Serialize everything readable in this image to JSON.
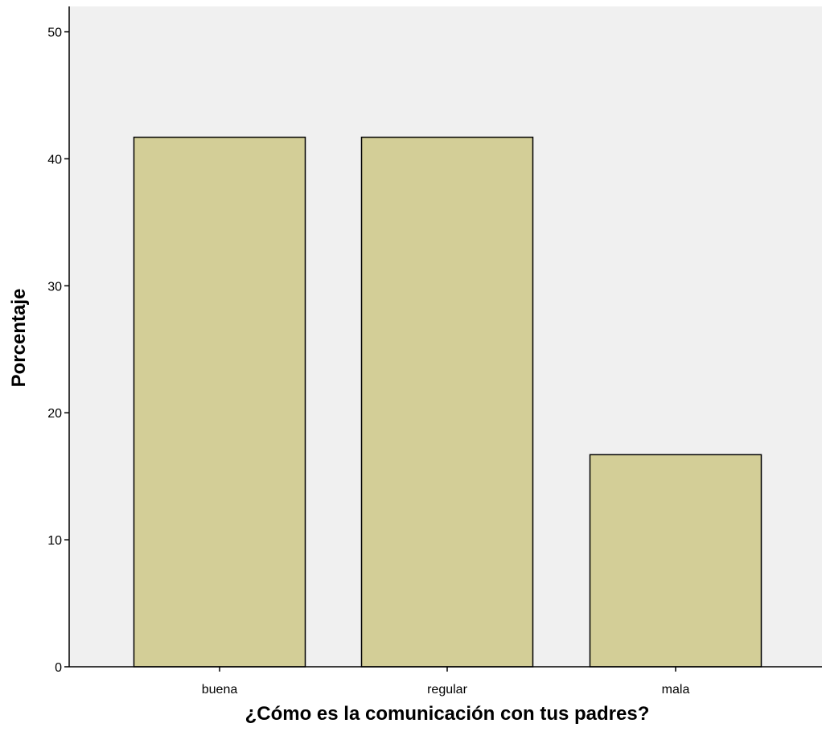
{
  "chart_data": {
    "type": "bar",
    "categories": [
      "buena",
      "regular",
      "mala"
    ],
    "values": [
      41.7,
      41.7,
      16.7
    ],
    "xlabel": "¿Cómo es la comunicación con tus padres?",
    "ylabel": "Porcentaje",
    "ylim": [
      0,
      52
    ],
    "yticks": [
      "0",
      "10",
      "20",
      "30",
      "40",
      "50"
    ],
    "grid": false,
    "legend": "none",
    "colors": {
      "plot_background": "#f0f0f0",
      "bar_fill": "#d3ce97",
      "bar_edge": "#000000",
      "axis": "#000000"
    }
  }
}
